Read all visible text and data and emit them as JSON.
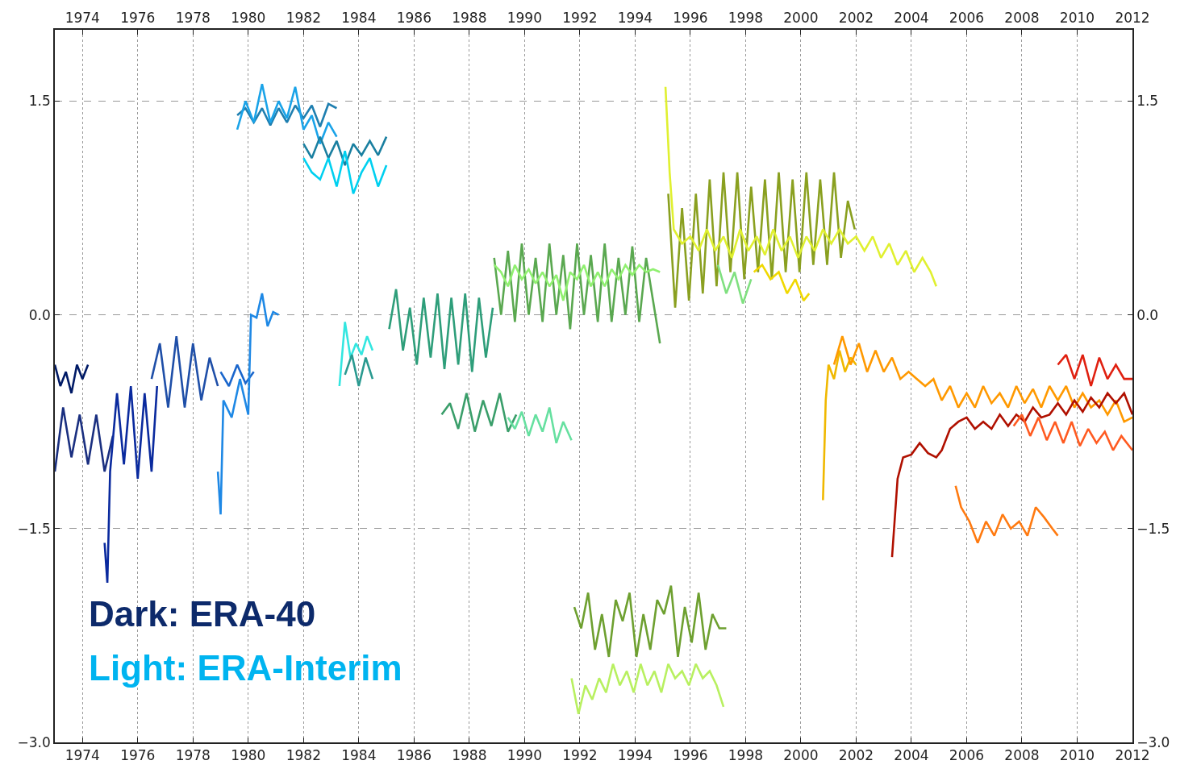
{
  "chart_data": {
    "type": "line",
    "xlim": [
      1973,
      2012
    ],
    "xticks": [
      1974,
      1976,
      1978,
      1980,
      1982,
      1984,
      1986,
      1988,
      1990,
      1992,
      1994,
      1996,
      1998,
      2000,
      2002,
      2004,
      2006,
      2008,
      2010,
      2012
    ],
    "x2lim": [
      1973,
      2012
    ],
    "x2ticks": [
      1974,
      1976,
      1978,
      1980,
      1982,
      1984,
      1986,
      1988,
      1990,
      1992,
      1994,
      1996,
      1998,
      2000,
      2002,
      2004,
      2006,
      2008,
      2010,
      2012
    ],
    "ylim": [
      -3.0,
      2.0
    ],
    "yticks": [
      {
        "value": 1.5,
        "label": "1.5"
      },
      {
        "value": 0,
        "label": "0.0"
      },
      {
        "value": -1.5,
        "label": "−1.5"
      },
      {
        "value": -3.0,
        "label": "−3.0"
      }
    ],
    "y2lim": [
      -3.0,
      2.0
    ],
    "y2ticks": [
      {
        "value": 1.5,
        "label": "1.5"
      },
      {
        "value": 0,
        "label": "0.0"
      },
      {
        "value": -1.5,
        "label": "−1.5"
      },
      {
        "value": -3.0,
        "label": "−3.0"
      }
    ],
    "grid": true,
    "line_style": "solid",
    "annotations": [
      "Dark: ERA-40",
      "Light: ERA-Interim"
    ],
    "series": [
      {
        "color": "#001a66",
        "x": [
          1973.0,
          1973.2,
          1973.4,
          1973.6,
          1973.8,
          1974.0,
          1974.2
        ],
        "values": [
          -0.35,
          -0.5,
          -0.4,
          -0.55,
          -0.35,
          -0.45,
          -0.35
        ]
      },
      {
        "color": "#1a2f80",
        "x": [
          1973.0,
          1973.3,
          1973.6,
          1973.9,
          1974.2,
          1974.5,
          1974.8,
          1975.1
        ],
        "values": [
          -1.1,
          -0.65,
          -1.0,
          -0.7,
          -1.05,
          -0.7,
          -1.1,
          -0.85
        ]
      },
      {
        "color": "#0a2a9e",
        "x": [
          1974.8,
          1974.9,
          1975.0,
          1975.25,
          1975.5,
          1975.75,
          1976.0,
          1976.25,
          1976.5,
          1976.7
        ],
        "values": [
          -1.6,
          -1.88,
          -1.1,
          -0.55,
          -1.05,
          -0.5,
          -1.15,
          -0.55,
          -1.1,
          -0.5
        ]
      },
      {
        "color": "#1f4fa8",
        "x": [
          1976.5,
          1976.8,
          1977.1,
          1977.4,
          1977.7,
          1978.0,
          1978.3,
          1978.6,
          1978.9
        ],
        "values": [
          -0.45,
          -0.2,
          -0.65,
          -0.15,
          -0.65,
          -0.2,
          -0.6,
          -0.3,
          -0.5
        ]
      },
      {
        "color": "#1a66cc",
        "x": [
          1979.0,
          1979.3,
          1979.6,
          1979.9,
          1980.2
        ],
        "values": [
          -0.4,
          -0.5,
          -0.35,
          -0.48,
          -0.4
        ]
      },
      {
        "color": "#1e88e5",
        "x": [
          1978.9,
          1979.0,
          1979.1,
          1979.4,
          1979.7,
          1980.0,
          1980.1,
          1980.3,
          1980.5,
          1980.7,
          1980.9,
          1981.1
        ],
        "values": [
          -1.1,
          -1.4,
          -0.6,
          -0.72,
          -0.45,
          -0.7,
          0.0,
          -0.02,
          0.15,
          -0.08,
          0.02,
          0.0
        ]
      },
      {
        "color": "#1f7fb0",
        "x": [
          1979.6,
          1979.9,
          1980.2,
          1980.5,
          1980.8,
          1981.1,
          1981.4,
          1981.7,
          1982.0,
          1982.3,
          1982.6,
          1982.9,
          1983.2
        ],
        "values": [
          1.4,
          1.45,
          1.35,
          1.45,
          1.33,
          1.45,
          1.35,
          1.47,
          1.38,
          1.47,
          1.32,
          1.48,
          1.45
        ]
      },
      {
        "color": "#1aa3e8",
        "x": [
          1979.6,
          1979.9,
          1980.2,
          1980.5,
          1980.8,
          1981.1,
          1981.4,
          1981.7,
          1982.0,
          1982.3,
          1982.6,
          1982.9,
          1983.2
        ],
        "values": [
          1.3,
          1.5,
          1.35,
          1.62,
          1.35,
          1.5,
          1.38,
          1.6,
          1.3,
          1.4,
          1.2,
          1.35,
          1.25
        ]
      },
      {
        "color": "#1a7fa0",
        "x": [
          1982.0,
          1982.3,
          1982.6,
          1982.9,
          1983.2,
          1983.5,
          1983.8,
          1984.1,
          1984.4,
          1984.7,
          1985.0
        ],
        "values": [
          1.2,
          1.1,
          1.25,
          1.1,
          1.22,
          1.05,
          1.2,
          1.12,
          1.22,
          1.12,
          1.25
        ]
      },
      {
        "color": "#00d0f0",
        "x": [
          1982.0,
          1982.3,
          1982.6,
          1982.9,
          1983.2,
          1983.5,
          1983.8,
          1984.1,
          1984.4,
          1984.7,
          1985.0
        ],
        "values": [
          1.1,
          1.0,
          0.95,
          1.1,
          0.9,
          1.15,
          0.85,
          1.0,
          1.1,
          0.9,
          1.05
        ]
      },
      {
        "color": "#33e6e0",
        "x": [
          1983.3,
          1983.5,
          1983.7,
          1983.9,
          1984.1,
          1984.3,
          1984.5
        ],
        "values": [
          -0.5,
          -0.05,
          -0.3,
          -0.2,
          -0.28,
          -0.15,
          -0.25
        ]
      },
      {
        "color": "#2a9a90",
        "x": [
          1983.5,
          1983.75,
          1984.0,
          1984.25,
          1984.5
        ],
        "values": [
          -0.42,
          -0.28,
          -0.5,
          -0.3,
          -0.45
        ]
      },
      {
        "color": "#2e9e7a",
        "x": [
          1985.1,
          1985.35,
          1985.6,
          1985.85,
          1986.1,
          1986.35,
          1986.6,
          1986.85,
          1987.1,
          1987.35,
          1987.6,
          1987.85,
          1988.1,
          1988.35,
          1988.6,
          1988.85
        ],
        "values": [
          -0.1,
          0.18,
          -0.25,
          0.05,
          -0.35,
          0.12,
          -0.3,
          0.15,
          -0.38,
          0.12,
          -0.35,
          0.15,
          -0.4,
          0.12,
          -0.3,
          0.05
        ]
      },
      {
        "color": "#3a9e6a",
        "x": [
          1987.0,
          1987.3,
          1987.6,
          1987.9,
          1988.2,
          1988.5,
          1988.8,
          1989.1,
          1989.4,
          1989.7
        ],
        "values": [
          -0.7,
          -0.62,
          -0.8,
          -0.55,
          -0.82,
          -0.6,
          -0.78,
          -0.55,
          -0.82,
          -0.7
        ]
      },
      {
        "color": "#66e0a0",
        "x": [
          1989.4,
          1989.65,
          1989.9,
          1990.15,
          1990.4,
          1990.65,
          1990.9,
          1991.15,
          1991.4,
          1991.7
        ],
        "values": [
          -0.72,
          -0.8,
          -0.68,
          -0.85,
          -0.7,
          -0.82,
          -0.65,
          -0.9,
          -0.75,
          -0.88
        ]
      },
      {
        "color": "#5aa850",
        "x": [
          1988.9,
          1989.15,
          1989.4,
          1989.65,
          1989.9,
          1990.15,
          1990.4,
          1990.65,
          1990.9,
          1991.15,
          1991.4,
          1991.65,
          1991.9,
          1992.15,
          1992.4,
          1992.65,
          1992.9,
          1993.15,
          1993.4,
          1993.65,
          1993.9,
          1994.15,
          1994.4,
          1994.65,
          1994.9
        ],
        "values": [
          0.4,
          0.0,
          0.45,
          -0.05,
          0.5,
          0.0,
          0.4,
          -0.05,
          0.5,
          0.0,
          0.42,
          -0.1,
          0.5,
          0.0,
          0.42,
          -0.05,
          0.5,
          -0.05,
          0.4,
          0.0,
          0.48,
          -0.05,
          0.4,
          0.1,
          -0.2
        ]
      },
      {
        "color": "#90f070",
        "x": [
          1988.9,
          1989.15,
          1989.4,
          1989.65,
          1989.9,
          1990.15,
          1990.4,
          1990.65,
          1990.9,
          1991.15,
          1991.4,
          1991.65,
          1991.9,
          1992.15,
          1992.4,
          1992.65,
          1992.9,
          1993.15,
          1993.4,
          1993.65,
          1993.9,
          1994.15,
          1994.4,
          1994.65,
          1994.9
        ],
        "values": [
          0.35,
          0.3,
          0.2,
          0.35,
          0.25,
          0.32,
          0.22,
          0.3,
          0.2,
          0.28,
          0.1,
          0.3,
          0.25,
          0.35,
          0.2,
          0.3,
          0.2,
          0.32,
          0.25,
          0.35,
          0.28,
          0.35,
          0.3,
          0.32,
          0.3
        ]
      },
      {
        "color": "#8aa020",
        "x": [
          1995.2,
          1995.45,
          1995.7,
          1995.95,
          1996.2,
          1996.45,
          1996.7,
          1996.95,
          1997.2,
          1997.45,
          1997.7,
          1997.95,
          1998.2,
          1998.45,
          1998.7,
          1998.95,
          1999.2,
          1999.45,
          1999.7,
          1999.95,
          2000.2,
          2000.45,
          2000.7,
          2000.95,
          2001.2,
          2001.45,
          2001.7,
          2001.95
        ],
        "values": [
          0.85,
          0.05,
          0.75,
          0.1,
          0.85,
          0.15,
          0.95,
          0.2,
          1.0,
          0.3,
          1.0,
          0.25,
          0.9,
          0.3,
          0.95,
          0.25,
          1.0,
          0.3,
          0.95,
          0.3,
          1.0,
          0.35,
          0.95,
          0.35,
          1.0,
          0.4,
          0.8,
          0.6
        ]
      },
      {
        "color": "#e0f030",
        "x": [
          1995.1,
          1995.25,
          1995.4,
          1995.7,
          1996.0,
          1996.3,
          1996.6,
          1996.9,
          1997.2,
          1997.5,
          1997.8,
          1998.1,
          1998.4,
          1998.7,
          1999.0,
          1999.3,
          1999.6,
          1999.9,
          2000.2,
          2000.5,
          2000.8,
          2001.1,
          2001.4,
          2001.7,
          2002.0,
          2002.3,
          2002.6,
          2002.9,
          2003.2,
          2003.5,
          2003.8,
          2004.1,
          2004.4,
          2004.7,
          2004.9
        ],
        "values": [
          1.6,
          1.0,
          0.6,
          0.5,
          0.55,
          0.45,
          0.6,
          0.45,
          0.55,
          0.4,
          0.6,
          0.45,
          0.55,
          0.42,
          0.6,
          0.45,
          0.55,
          0.4,
          0.55,
          0.45,
          0.6,
          0.5,
          0.6,
          0.5,
          0.55,
          0.45,
          0.55,
          0.4,
          0.5,
          0.35,
          0.45,
          0.3,
          0.4,
          0.3,
          0.2
        ]
      },
      {
        "color": "#80e080",
        "x": [
          1997.0,
          1997.3,
          1997.6,
          1997.9,
          1998.2
        ],
        "values": [
          0.35,
          0.15,
          0.3,
          0.08,
          0.25
        ]
      },
      {
        "color": "#f0d800",
        "x": [
          1998.3,
          1998.6,
          1998.9,
          1999.2,
          1999.5,
          1999.8,
          2000.1,
          2000.3
        ],
        "values": [
          0.3,
          0.35,
          0.25,
          0.3,
          0.15,
          0.25,
          0.1,
          0.15
        ]
      },
      {
        "color": "#f0b800",
        "x": [
          2000.8,
          2000.9,
          2001.0,
          2001.2,
          2001.4,
          2001.6,
          2001.8,
          2002.0
        ],
        "values": [
          -1.3,
          -0.6,
          -0.35,
          -0.45,
          -0.25,
          -0.4,
          -0.3,
          -0.35
        ]
      },
      {
        "color": "#ff9900",
        "x": [
          2001.2,
          2001.5,
          2001.8,
          2002.1,
          2002.4,
          2002.7,
          2003.0,
          2003.3,
          2003.6,
          2003.9,
          2004.2,
          2004.5,
          2004.8,
          2005.1,
          2005.4,
          2005.7,
          2006.0,
          2006.3,
          2006.6,
          2006.9,
          2007.2,
          2007.5,
          2007.8,
          2008.1,
          2008.4,
          2008.7,
          2009.0,
          2009.3,
          2009.6,
          2009.9,
          2010.2,
          2010.5,
          2010.8,
          2011.1,
          2011.4,
          2011.7,
          2012.0
        ],
        "values": [
          -0.35,
          -0.15,
          -0.35,
          -0.2,
          -0.4,
          -0.25,
          -0.4,
          -0.3,
          -0.45,
          -0.4,
          -0.45,
          -0.5,
          -0.45,
          -0.6,
          -0.5,
          -0.65,
          -0.55,
          -0.65,
          -0.5,
          -0.62,
          -0.55,
          -0.65,
          -0.5,
          -0.62,
          -0.52,
          -0.65,
          -0.5,
          -0.6,
          -0.5,
          -0.65,
          -0.55,
          -0.65,
          -0.6,
          -0.7,
          -0.6,
          -0.75,
          -0.72
        ]
      },
      {
        "color": "#b01000",
        "x": [
          2003.3,
          2003.5,
          2003.7,
          2004.0,
          2004.3,
          2004.6,
          2004.9,
          2005.1,
          2005.4,
          2005.7,
          2006.0,
          2006.3,
          2006.6,
          2006.9,
          2007.2,
          2007.5,
          2007.8,
          2008.1,
          2008.4,
          2008.7,
          2009.0,
          2009.3,
          2009.6,
          2009.9,
          2010.2,
          2010.5,
          2010.8,
          2011.1,
          2011.4,
          2011.7,
          2012.0
        ],
        "values": [
          -1.7,
          -1.15,
          -1.0,
          -0.98,
          -0.9,
          -0.97,
          -1.0,
          -0.95,
          -0.8,
          -0.75,
          -0.72,
          -0.8,
          -0.75,
          -0.8,
          -0.7,
          -0.78,
          -0.7,
          -0.75,
          -0.65,
          -0.72,
          -0.7,
          -0.62,
          -0.7,
          -0.6,
          -0.68,
          -0.58,
          -0.65,
          -0.55,
          -0.62,
          -0.55,
          -0.7
        ]
      },
      {
        "color": "#e02010",
        "x": [
          2009.3,
          2009.6,
          2009.9,
          2010.2,
          2010.5,
          2010.8,
          2011.1,
          2011.4,
          2011.7,
          2012.0
        ],
        "values": [
          -0.35,
          -0.28,
          -0.45,
          -0.28,
          -0.5,
          -0.3,
          -0.45,
          -0.35,
          -0.45,
          -0.45
        ]
      },
      {
        "color": "#ff5a20",
        "x": [
          2007.7,
          2008.0,
          2008.3,
          2008.6,
          2008.9,
          2009.2,
          2009.5,
          2009.8,
          2010.1,
          2010.4,
          2010.7,
          2011.0,
          2011.3,
          2011.6,
          2012.0
        ],
        "values": [
          -0.78,
          -0.7,
          -0.85,
          -0.72,
          -0.88,
          -0.75,
          -0.9,
          -0.75,
          -0.92,
          -0.8,
          -0.9,
          -0.82,
          -0.95,
          -0.85,
          -0.95
        ]
      },
      {
        "color": "#ff7a10",
        "x": [
          2005.6,
          2005.8,
          2006.1,
          2006.4,
          2006.7,
          2007.0,
          2007.3,
          2007.6,
          2007.9,
          2008.2,
          2008.5,
          2008.8,
          2009.1,
          2009.3
        ],
        "values": [
          -1.2,
          -1.35,
          -1.45,
          -1.6,
          -1.45,
          -1.55,
          -1.4,
          -1.5,
          -1.45,
          -1.55,
          -1.35,
          -1.42,
          -1.5,
          -1.55
        ]
      },
      {
        "color": "#6ea030",
        "x": [
          1991.8,
          1992.05,
          1992.3,
          1992.55,
          1992.8,
          1993.05,
          1993.3,
          1993.55,
          1993.8,
          1994.05,
          1994.3,
          1994.55,
          1994.8,
          1995.05,
          1995.3,
          1995.55,
          1995.8,
          1996.05,
          1996.3,
          1996.55,
          1996.8,
          1997.05,
          1997.3
        ],
        "values": [
          -2.05,
          -2.2,
          -1.95,
          -2.35,
          -2.1,
          -2.4,
          -2.0,
          -2.15,
          -1.95,
          -2.4,
          -2.1,
          -2.35,
          -2.0,
          -2.1,
          -1.9,
          -2.4,
          -2.05,
          -2.3,
          -1.95,
          -2.35,
          -2.1,
          -2.2,
          -2.2
        ]
      },
      {
        "color": "#b8f060",
        "x": [
          1991.7,
          1991.95,
          1992.2,
          1992.45,
          1992.7,
          1992.95,
          1993.2,
          1993.45,
          1993.7,
          1993.95,
          1994.2,
          1994.45,
          1994.7,
          1994.95,
          1995.2,
          1995.45,
          1995.7,
          1995.95,
          1996.2,
          1996.45,
          1996.7,
          1996.95,
          1997.2
        ],
        "values": [
          -2.55,
          -2.8,
          -2.6,
          -2.7,
          -2.55,
          -2.65,
          -2.45,
          -2.6,
          -2.5,
          -2.65,
          -2.45,
          -2.6,
          -2.5,
          -2.65,
          -2.45,
          -2.55,
          -2.5,
          -2.6,
          -2.45,
          -2.55,
          -2.5,
          -2.6,
          -2.75
        ]
      }
    ]
  }
}
